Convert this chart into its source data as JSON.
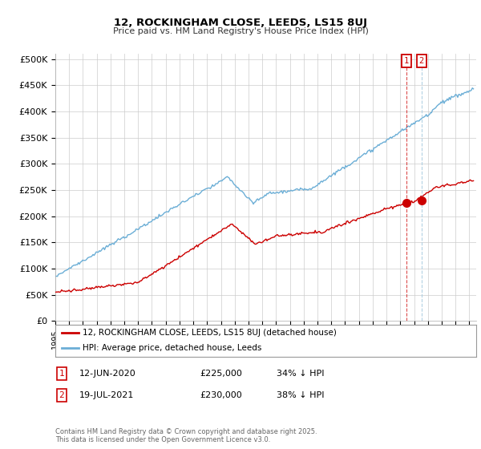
{
  "title1": "12, ROCKINGHAM CLOSE, LEEDS, LS15 8UJ",
  "title2": "Price paid vs. HM Land Registry's House Price Index (HPI)",
  "ylabel_ticks": [
    "£0",
    "£50K",
    "£100K",
    "£150K",
    "£200K",
    "£250K",
    "£300K",
    "£350K",
    "£400K",
    "£450K",
    "£500K"
  ],
  "ytick_values": [
    0,
    50000,
    100000,
    150000,
    200000,
    250000,
    300000,
    350000,
    400000,
    450000,
    500000
  ],
  "xlim_start": 1995.0,
  "xlim_end": 2025.5,
  "ylim": [
    0,
    510000
  ],
  "hpi_color": "#6baed6",
  "price_color": "#cc0000",
  "marker1_date": 2020.45,
  "marker2_date": 2021.54,
  "marker1_price": 225000,
  "marker2_price": 230000,
  "legend_line1": "12, ROCKINGHAM CLOSE, LEEDS, LS15 8UJ (detached house)",
  "legend_line2": "HPI: Average price, detached house, Leeds",
  "annot1_date": "12-JUN-2020",
  "annot1_price": "£225,000",
  "annot1_hpi": "34% ↓ HPI",
  "annot2_date": "19-JUL-2021",
  "annot2_price": "£230,000",
  "annot2_hpi": "38% ↓ HPI",
  "footer": "Contains HM Land Registry data © Crown copyright and database right 2025.\nThis data is licensed under the Open Government Licence v3.0.",
  "bg_color": "#ffffff",
  "grid_color": "#cccccc"
}
